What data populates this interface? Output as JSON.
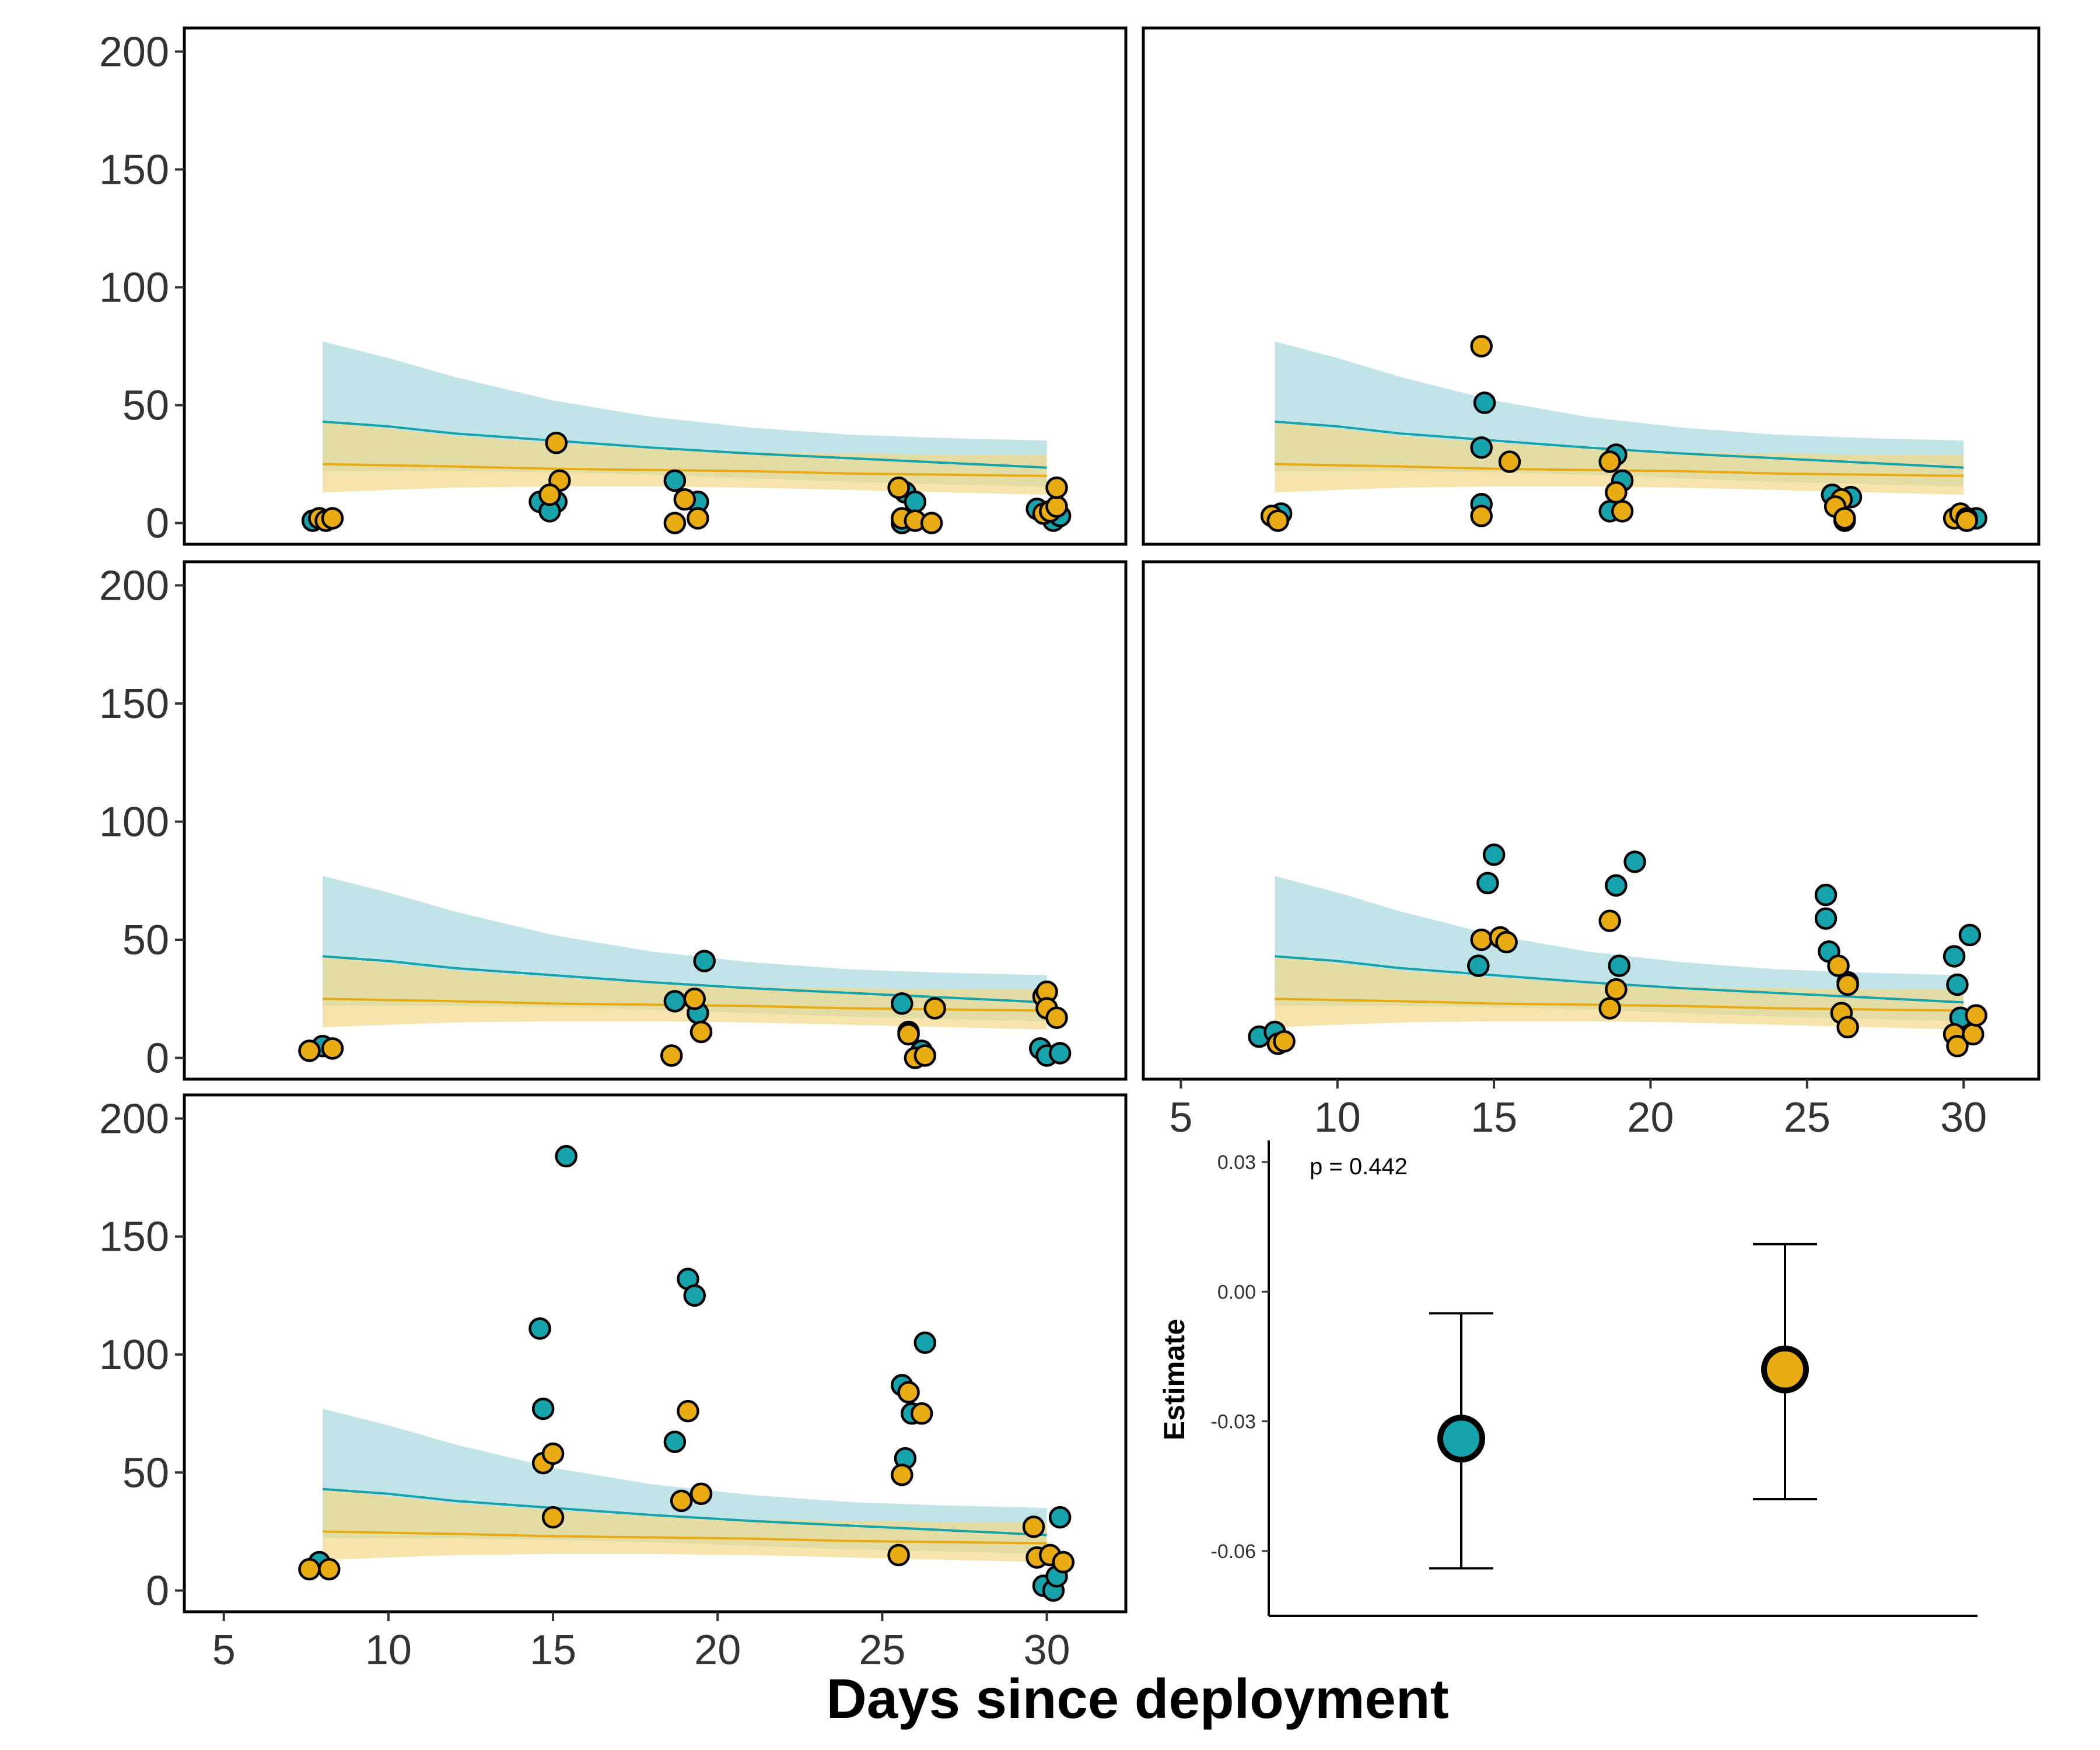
{
  "colors": {
    "teal": "#17a3ac",
    "gold": "#e8ac12",
    "teal_band": "#a5d9de",
    "gold_band": "#f4d989",
    "axis": "#000000"
  },
  "chart_data": [
    {
      "type": "scatter",
      "panel": "top-left",
      "xlim": [
        3.8,
        32.4
      ],
      "ylim": [
        -9,
        210
      ],
      "yticks": [
        0,
        50,
        100,
        150,
        200
      ],
      "xticks": [],
      "fit": {
        "x": [
          8,
          10,
          12,
          15,
          18,
          21,
          24,
          27,
          30
        ],
        "teal_mean": [
          43,
          41,
          38,
          35,
          32,
          29.5,
          27.5,
          25.5,
          23.5
        ],
        "teal_lower": [
          22,
          22,
          22,
          21.5,
          20.5,
          19,
          17.5,
          16.5,
          15.5
        ],
        "teal_upper": [
          77,
          70,
          62,
          52,
          45,
          40.5,
          37.5,
          36,
          35
        ],
        "gold_mean": [
          25,
          24.5,
          24,
          23,
          22.5,
          22,
          21,
          20.5,
          20
        ],
        "gold_lower": [
          13,
          14,
          15,
          15.5,
          15.5,
          15,
          14,
          13,
          12
        ],
        "gold_upper": [
          43,
          40,
          37,
          34,
          31.5,
          30,
          29.5,
          29,
          29
        ]
      },
      "series": [
        {
          "color_key": "teal",
          "x": [
            7.7,
            7.9,
            14.6,
            15.1,
            14.9,
            18.7,
            19.4,
            25.7,
            26.0,
            25.6,
            29.7,
            30.2,
            30.4
          ],
          "y": [
            1,
            2,
            9,
            9,
            5,
            18,
            9,
            13,
            9,
            0,
            6,
            1,
            3
          ]
        },
        {
          "color_key": "gold",
          "x": [
            7.9,
            8.1,
            8.3,
            15.1,
            15.2,
            14.9,
            18.7,
            19.0,
            19.4,
            25.5,
            25.6,
            26.0,
            26.5,
            29.9,
            30.1,
            30.3,
            30.3
          ],
          "y": [
            2,
            1,
            2,
            34,
            18,
            12,
            0,
            10,
            2,
            15,
            2,
            1,
            0,
            4,
            5,
            7,
            15
          ]
        }
      ]
    },
    {
      "type": "scatter",
      "panel": "top-right",
      "xlim": [
        3.8,
        32.4
      ],
      "ylim": [
        -9,
        210
      ],
      "yticks": [],
      "xticks": [],
      "fit": {
        "x": [
          8,
          10,
          12,
          15,
          18,
          21,
          24,
          27,
          30
        ],
        "teal_mean": [
          43,
          41,
          38,
          35,
          32,
          29.5,
          27.5,
          25.5,
          23.5
        ],
        "teal_lower": [
          22,
          22,
          22,
          21.5,
          20.5,
          19,
          17.5,
          16.5,
          15.5
        ],
        "teal_upper": [
          77,
          70,
          62,
          52,
          45,
          40.5,
          37.5,
          36,
          35
        ],
        "gold_mean": [
          25,
          24.5,
          24,
          23,
          22.5,
          22,
          21,
          20.5,
          20
        ],
        "gold_lower": [
          13,
          14,
          15,
          15.5,
          15.5,
          15,
          14,
          13,
          12
        ],
        "gold_upper": [
          43,
          40,
          37,
          34,
          31.5,
          30,
          29.5,
          29,
          29
        ]
      },
      "series": [
        {
          "color_key": "teal",
          "x": [
            8.2,
            14.7,
            14.6,
            14.6,
            18.9,
            19.1,
            18.7,
            25.8,
            26.4,
            26.2,
            30.0,
            30.1,
            30.4
          ],
          "y": [
            4,
            51,
            32,
            8,
            29,
            18,
            5,
            12,
            11,
            1,
            2,
            1,
            2
          ]
        },
        {
          "color_key": "gold",
          "x": [
            7.9,
            8.1,
            14.6,
            14.6,
            15.5,
            18.7,
            18.9,
            19.1,
            26.1,
            25.9,
            26.2,
            29.7,
            29.9,
            30.1,
            30.1
          ],
          "y": [
            3,
            1,
            75,
            3,
            26,
            26,
            13,
            5,
            10,
            7,
            2,
            2,
            4,
            2,
            1
          ]
        }
      ]
    },
    {
      "type": "scatter",
      "panel": "middle-left",
      "xlim": [
        3.8,
        32.4
      ],
      "ylim": [
        -9,
        210
      ],
      "yticks": [
        0,
        50,
        100,
        150,
        200
      ],
      "xticks": [],
      "fit": {
        "x": [
          8,
          10,
          12,
          15,
          18,
          21,
          24,
          27,
          30
        ],
        "teal_mean": [
          43,
          41,
          38,
          35,
          32,
          29.5,
          27.5,
          25.5,
          23.5
        ],
        "teal_lower": [
          22,
          22,
          22,
          21.5,
          20.5,
          19,
          17.5,
          16.5,
          15.5
        ],
        "teal_upper": [
          77,
          70,
          62,
          52,
          45,
          40.5,
          37.5,
          36,
          35
        ],
        "gold_mean": [
          25,
          24.5,
          24,
          23,
          22.5,
          22,
          21,
          20.5,
          20
        ],
        "gold_lower": [
          13,
          14,
          15,
          15.5,
          15.5,
          15,
          14,
          13,
          12
        ],
        "gold_upper": [
          43,
          40,
          37,
          34,
          31.5,
          30,
          29.5,
          29,
          29
        ]
      },
      "series": [
        {
          "color_key": "teal",
          "x": [
            8.0,
            18.7,
            19.4,
            19.6,
            25.6,
            25.8,
            26.2,
            29.8,
            30.0,
            30.4
          ],
          "y": [
            5,
            24,
            19,
            41,
            23,
            11,
            3,
            4,
            1,
            2
          ]
        },
        {
          "color_key": "gold",
          "x": [
            7.6,
            8.3,
            18.6,
            19.3,
            19.5,
            25.8,
            26.0,
            26.3,
            26.6,
            29.9,
            30.0,
            30.0,
            30.3
          ],
          "y": [
            3,
            4,
            1,
            25,
            11,
            10,
            0,
            1,
            21,
            26,
            28,
            21,
            17
          ]
        }
      ]
    },
    {
      "type": "scatter",
      "panel": "middle-right",
      "xlim": [
        3.8,
        32.4
      ],
      "ylim": [
        -9,
        210
      ],
      "yticks": [],
      "xticks": [
        5,
        10,
        15,
        20,
        25,
        30
      ],
      "fit": {
        "x": [
          8,
          10,
          12,
          15,
          18,
          21,
          24,
          27,
          30
        ],
        "teal_mean": [
          43,
          41,
          38,
          35,
          32,
          29.5,
          27.5,
          25.5,
          23.5
        ],
        "teal_lower": [
          22,
          22,
          22,
          21.5,
          20.5,
          19,
          17.5,
          16.5,
          15.5
        ],
        "teal_upper": [
          77,
          70,
          62,
          52,
          45,
          40.5,
          37.5,
          36,
          35
        ],
        "gold_mean": [
          25,
          24.5,
          24,
          23,
          22.5,
          22,
          21,
          20.5,
          20
        ],
        "gold_lower": [
          13,
          14,
          15,
          15.5,
          15.5,
          15,
          14,
          13,
          12
        ],
        "gold_upper": [
          43,
          40,
          37,
          34,
          31.5,
          30,
          29.5,
          29,
          29
        ]
      },
      "series": [
        {
          "color_key": "teal",
          "x": [
            7.5,
            8.0,
            14.5,
            14.8,
            15.0,
            18.9,
            19.0,
            19.5,
            25.6,
            25.6,
            25.7,
            26.3,
            29.7,
            29.8,
            29.9,
            30.2
          ],
          "y": [
            9,
            11,
            39,
            74,
            86,
            73,
            39,
            83,
            69,
            59,
            45,
            32,
            43,
            31,
            17,
            52
          ]
        },
        {
          "color_key": "gold",
          "x": [
            8.1,
            8.3,
            14.6,
            15.2,
            15.4,
            18.7,
            18.7,
            18.9,
            26.0,
            26.1,
            26.3,
            26.3,
            29.7,
            29.8,
            30.3,
            30.4
          ],
          "y": [
            6,
            7,
            50,
            51,
            49,
            58,
            21,
            29,
            39,
            19,
            31,
            13,
            10,
            5,
            10,
            18
          ]
        }
      ]
    },
    {
      "type": "scatter",
      "panel": "bottom-left",
      "xlim": [
        3.8,
        32.4
      ],
      "ylim": [
        -9,
        210
      ],
      "yticks": [
        0,
        50,
        100,
        150,
        200
      ],
      "xticks": [
        5,
        10,
        15,
        20,
        25,
        30
      ],
      "fit": {
        "x": [
          8,
          10,
          12,
          15,
          18,
          21,
          24,
          27,
          30
        ],
        "teal_mean": [
          43,
          41,
          38,
          35,
          32,
          29.5,
          27.5,
          25.5,
          23.5
        ],
        "teal_lower": [
          22,
          22,
          22,
          21.5,
          20.5,
          19,
          17.5,
          16.5,
          15.5
        ],
        "teal_upper": [
          77,
          70,
          62,
          52,
          45,
          40.5,
          37.5,
          36,
          35
        ],
        "gold_mean": [
          25,
          24.5,
          24,
          23,
          22.5,
          22,
          21,
          20.5,
          20
        ],
        "gold_lower": [
          13,
          14,
          15,
          15.5,
          15.5,
          15,
          14,
          13,
          12
        ],
        "gold_upper": [
          43,
          40,
          37,
          34,
          31.5,
          30,
          29.5,
          29,
          29
        ]
      },
      "series": [
        {
          "color_key": "teal",
          "x": [
            7.9,
            14.6,
            14.7,
            15.4,
            18.7,
            19.1,
            19.3,
            25.6,
            25.7,
            25.9,
            26.3,
            29.9,
            30.2,
            30.3,
            30.4
          ],
          "y": [
            12,
            111,
            77,
            184,
            63,
            132,
            125,
            87,
            56,
            75,
            105,
            2,
            0,
            6,
            31
          ]
        },
        {
          "color_key": "gold",
          "x": [
            7.6,
            8.2,
            14.7,
            15.0,
            15.0,
            18.9,
            19.1,
            19.5,
            25.5,
            25.6,
            25.8,
            26.2,
            29.6,
            29.7,
            30.1,
            30.5
          ],
          "y": [
            9,
            9,
            54,
            58,
            31,
            38,
            76,
            41,
            15,
            49,
            84,
            75,
            27,
            14,
            15,
            12
          ]
        }
      ]
    },
    {
      "type": "scatter",
      "panel": "estimate",
      "ylabel": "Estimate",
      "annotation": "p = 0.442",
      "ylim": [
        -0.075,
        0.035
      ],
      "yticks": [
        0.03,
        0.0,
        -0.03,
        -0.06
      ],
      "ytick_labels": [
        "0.03",
        "0.00",
        "-0.03",
        "-0.06"
      ],
      "points": [
        {
          "color_key": "teal",
          "estimate": -0.034,
          "lower": -0.064,
          "upper": -0.005
        },
        {
          "color_key": "gold",
          "estimate": -0.018,
          "lower": -0.048,
          "upper": 0.011
        }
      ]
    }
  ],
  "labels": {
    "xlabel": "Days since deployment",
    "pvalue": "p = 0.442",
    "estimate_ylabel": "Estimate"
  }
}
